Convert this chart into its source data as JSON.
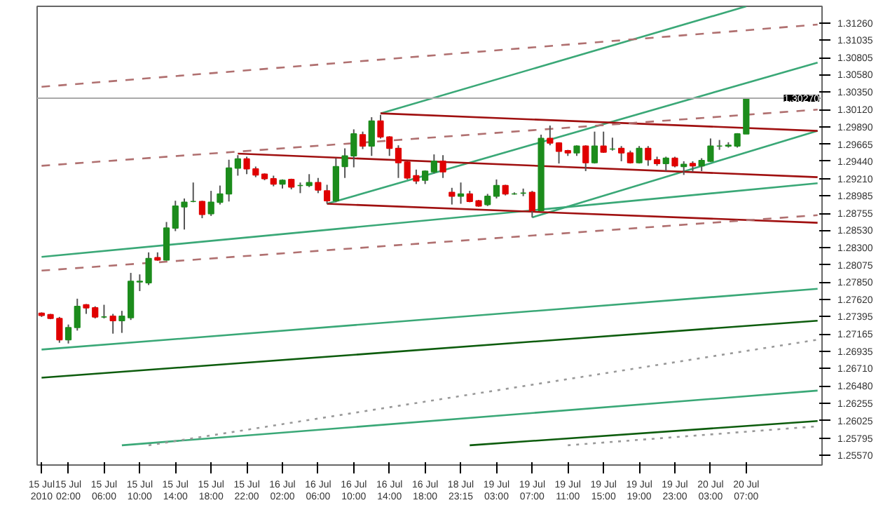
{
  "chart_data": {
    "type": "candlestick",
    "categories": [
      "15 Jul 2010",
      null,
      null,
      "15 Jul 02:00",
      null,
      null,
      null,
      "15 Jul 06:00",
      null,
      null,
      null,
      "15 Jul 10:00",
      null,
      null,
      null,
      "15 Jul 14:00",
      null,
      null,
      null,
      "15 Jul 18:00",
      null,
      null,
      null,
      "15 Jul 22:00",
      null,
      null,
      null,
      "16 Jul 02:00",
      null,
      null,
      null,
      "16 Jul 06:00",
      null,
      null,
      null,
      "16 Jul 10:00",
      null,
      null,
      null,
      "16 Jul 14:00",
      null,
      null,
      null,
      "16 Jul 18:00",
      null,
      null,
      null,
      "18 Jul 23:15",
      null,
      null,
      null,
      "19 Jul 03:00",
      null,
      null,
      null,
      "19 Jul 07:00",
      null,
      null,
      null,
      "19 Jul 11:00",
      null,
      null,
      null,
      "19 Jul 15:00",
      null,
      null,
      null,
      "19 Jul 19:00",
      null,
      null,
      null,
      "19 Jul 23:00",
      null,
      null,
      null,
      "20 Jul 03:00",
      null,
      null,
      null,
      "20 Jul 07:00",
      null,
      null,
      null,
      null,
      null,
      null,
      null,
      null
    ],
    "ohlc": [
      [
        1.2744,
        1.2745,
        1.2739,
        1.2741
      ],
      [
        1.2742,
        1.2743,
        1.2736,
        1.2737
      ],
      [
        1.2737,
        1.2739,
        1.2705,
        1.2709
      ],
      [
        1.2709,
        1.2729,
        1.2704,
        1.2725
      ],
      [
        1.2725,
        1.2763,
        1.2721,
        1.2753
      ],
      [
        1.2755,
        1.2756,
        1.2743,
        1.2751
      ],
      [
        1.2751,
        1.2753,
        1.2737,
        1.2739
      ],
      [
        1.2739,
        1.2755,
        1.2737,
        1.2739
      ],
      [
        1.274,
        1.2743,
        1.2717,
        1.2734
      ],
      [
        1.2734,
        1.2747,
        1.2718,
        1.274
      ],
      [
        1.2738,
        1.2797,
        1.2735,
        1.2786
      ],
      [
        1.2785,
        1.2795,
        1.2773,
        1.2786
      ],
      [
        1.2784,
        1.2824,
        1.2781,
        1.2816
      ],
      [
        1.2817,
        1.2824,
        1.2813,
        1.2814
      ],
      [
        1.2814,
        1.2864,
        1.2813,
        1.2856
      ],
      [
        1.2856,
        1.2892,
        1.2852,
        1.2885
      ],
      [
        1.2884,
        1.2895,
        1.2854,
        1.289
      ],
      [
        1.2891,
        1.2916,
        1.289,
        1.2891
      ],
      [
        1.2891,
        1.2892,
        1.2869,
        1.2874
      ],
      [
        1.2875,
        1.2905,
        1.2872,
        1.289
      ],
      [
        1.289,
        1.2912,
        1.2887,
        1.2901
      ],
      [
        1.2901,
        1.2946,
        1.2891,
        1.2935
      ],
      [
        1.2935,
        1.2952,
        1.2925,
        1.2947
      ],
      [
        1.2947,
        1.295,
        1.2927,
        1.2934
      ],
      [
        1.2934,
        1.2937,
        1.2923,
        1.2926
      ],
      [
        1.2927,
        1.2928,
        1.2919,
        1.2921
      ],
      [
        1.2921,
        1.2925,
        1.2911,
        1.2914
      ],
      [
        1.2914,
        1.292,
        1.2908,
        1.2919
      ],
      [
        1.292,
        1.2921,
        1.2907,
        1.291
      ],
      [
        1.2912,
        1.2916,
        1.2902,
        1.2912
      ],
      [
        1.2912,
        1.2927,
        1.291,
        1.2916
      ],
      [
        1.2916,
        1.2922,
        1.2902,
        1.2906
      ],
      [
        1.2905,
        1.2913,
        1.2888,
        1.2892
      ],
      [
        1.2892,
        1.2948,
        1.289,
        1.2937
      ],
      [
        1.2937,
        1.2961,
        1.2922,
        1.2951
      ],
      [
        1.2951,
        1.2986,
        1.2936,
        1.298
      ],
      [
        1.2979,
        1.2983,
        1.296,
        1.2964
      ],
      [
        1.2964,
        1.3002,
        1.2951,
        1.2997
      ],
      [
        1.2997,
        1.3005,
        1.2974,
        1.2976
      ],
      [
        1.2976,
        1.2977,
        1.2951,
        1.2961
      ],
      [
        1.2961,
        1.2965,
        1.2922,
        1.2942
      ],
      [
        1.2943,
        1.2944,
        1.292,
        1.2922
      ],
      [
        1.2925,
        1.2933,
        1.2914,
        1.2918
      ],
      [
        1.2919,
        1.2932,
        1.2914,
        1.2931
      ],
      [
        1.293,
        1.2953,
        1.2928,
        1.2944
      ],
      [
        1.2944,
        1.2952,
        1.2922,
        1.293
      ],
      [
        1.2903,
        1.2909,
        1.2887,
        1.2898
      ],
      [
        1.2898,
        1.2916,
        1.2888,
        1.2901
      ],
      [
        1.2901,
        1.2905,
        1.289,
        1.2891
      ],
      [
        1.2892,
        1.2893,
        1.2884,
        1.2885
      ],
      [
        1.2887,
        1.2901,
        1.2885,
        1.2898
      ],
      [
        1.2898,
        1.292,
        1.2895,
        1.2912
      ],
      [
        1.2912,
        1.2913,
        1.2899,
        1.2901
      ],
      [
        1.2901,
        1.2903,
        1.29,
        1.2901
      ],
      [
        1.2902,
        1.2908,
        1.2898,
        1.2902
      ],
      [
        1.2903,
        1.2905,
        1.287,
        1.2879
      ],
      [
        1.2879,
        1.2979,
        1.2878,
        1.2974
      ],
      [
        1.2974,
        1.2991,
        1.2965,
        1.2968
      ],
      [
        1.2968,
        1.2969,
        1.2941,
        1.2957
      ],
      [
        1.2958,
        1.2959,
        1.2951,
        1.2955
      ],
      [
        1.2955,
        1.2965,
        1.2951,
        1.2964
      ],
      [
        1.2964,
        1.2965,
        1.2931,
        1.2942
      ],
      [
        1.2942,
        1.2983,
        1.2941,
        1.2964
      ],
      [
        1.2964,
        1.2983,
        1.2955,
        1.2956
      ],
      [
        1.296,
        1.2975,
        1.2958,
        1.296
      ],
      [
        1.2961,
        1.2964,
        1.2944,
        1.2955
      ],
      [
        1.2955,
        1.2958,
        1.2941,
        1.2942
      ],
      [
        1.2942,
        1.2964,
        1.2941,
        1.2961
      ],
      [
        1.2961,
        1.2964,
        1.2938,
        1.2946
      ],
      [
        1.2946,
        1.295,
        1.2938,
        1.2941
      ],
      [
        1.2941,
        1.295,
        1.2931,
        1.2948
      ],
      [
        1.2948,
        1.295,
        1.2936,
        1.2938
      ],
      [
        1.2937,
        1.2944,
        1.2926,
        1.294
      ],
      [
        1.2941,
        1.2944,
        1.293,
        1.2938
      ],
      [
        1.2938,
        1.2948,
        1.2931,
        1.2945
      ],
      [
        1.2944,
        1.2974,
        1.2943,
        1.2964
      ],
      [
        1.2964,
        1.2972,
        1.2959,
        1.2964
      ],
      [
        1.2964,
        1.2969,
        1.2962,
        1.2965
      ],
      [
        1.2964,
        1.2981,
        1.2962,
        1.298
      ],
      [
        1.298,
        1.3027,
        1.298,
        1.3026
      ],
      null,
      null,
      null,
      null,
      null,
      null,
      null,
      null
    ],
    "colors": [
      "#e00000",
      "#e00000",
      "#e00000",
      "#1c8c1c",
      "#1c8c1c",
      "#e00000",
      "#e00000",
      "#1c8c1c",
      "#e00000",
      "#1c8c1c",
      "#1c8c1c",
      "#1c8c1c",
      "#1c8c1c",
      "#e00000",
      "#1c8c1c",
      "#1c8c1c",
      "#1c8c1c",
      "#1c8c1c",
      "#e00000",
      "#1c8c1c",
      "#1c8c1c",
      "#1c8c1c",
      "#1c8c1c",
      "#e00000",
      "#e00000",
      "#e00000",
      "#e00000",
      "#1c8c1c",
      "#e00000",
      "#1c8c1c",
      "#1c8c1c",
      "#e00000",
      "#e00000",
      "#1c8c1c",
      "#1c8c1c",
      "#1c8c1c",
      "#e00000",
      "#1c8c1c",
      "#e00000",
      "#e00000",
      "#e00000",
      "#e00000",
      "#e00000",
      "#1c8c1c",
      "#1c8c1c",
      "#e00000",
      "#e00000",
      "#1c8c1c",
      "#e00000",
      "#e00000",
      "#1c8c1c",
      "#1c8c1c",
      "#e00000",
      "#1c8c1c",
      "#1c8c1c",
      "#e00000",
      "#1c8c1c",
      "#e00000",
      "#e00000",
      "#e00000",
      "#1c8c1c",
      "#e00000",
      "#1c8c1c",
      "#e00000",
      "#1c8c1c",
      "#e00000",
      "#e00000",
      "#1c8c1c",
      "#e00000",
      "#e00000",
      "#1c8c1c",
      "#e00000",
      "#1c8c1c",
      "#e00000",
      "#1c8c1c",
      "#1c8c1c",
      "#1c8c1c",
      "#1c8c1c",
      "#1c8c1c",
      "#1c8c1c",
      null,
      null,
      null,
      null,
      null,
      null,
      null,
      null
    ],
    "series": [
      {
        "type": "line",
        "values": [
          null,
          null,
          null,
          null,
          null,
          null,
          null,
          null,
          null,
          null,
          null,
          null,
          null,
          null,
          null,
          null,
          null,
          null,
          null,
          null,
          null,
          null,
          null,
          null,
          null,
          null,
          null,
          null,
          null,
          null,
          null,
          null,
          null,
          null,
          null,
          null,
          null,
          null,
          1.3007,
          null,
          null,
          null,
          null,
          null,
          null,
          null,
          null,
          null,
          null,
          null,
          null,
          null,
          null,
          null,
          null,
          null,
          null,
          null,
          null,
          null,
          null,
          null,
          null,
          null,
          null,
          null,
          null,
          null,
          null,
          null,
          null,
          null,
          null,
          null,
          null,
          null,
          null,
          null,
          null,
          1.3148,
          null,
          null,
          null,
          null,
          null,
          null,
          null,
          null
        ],
        "color": "#3aa877",
        "line_style": "solid"
      },
      {
        "type": "line",
        "values": [
          null,
          null,
          null,
          null,
          null,
          null,
          null,
          null,
          null,
          null,
          null,
          null,
          null,
          null,
          null,
          null,
          null,
          null,
          null,
          null,
          null,
          null,
          null,
          null,
          null,
          null,
          null,
          null,
          null,
          null,
          null,
          null,
          1.2888,
          null,
          null,
          null,
          null,
          null,
          null,
          null,
          null,
          null,
          null,
          null,
          null,
          null,
          null,
          null,
          null,
          null,
          null,
          null,
          null,
          null,
          null,
          null,
          null,
          null,
          null,
          null,
          null,
          null,
          null,
          null,
          null,
          null,
          null,
          null,
          null,
          null,
          null,
          null,
          null,
          null,
          null,
          null,
          null,
          null,
          null,
          null,
          null,
          null,
          null,
          null,
          null,
          null,
          null,
          1.3074
        ],
        "color": "#3aa877",
        "line_style": "solid"
      },
      {
        "type": "line",
        "values": [
          null,
          null,
          null,
          null,
          null,
          null,
          null,
          null,
          null,
          null,
          null,
          null,
          null,
          null,
          null,
          null,
          null,
          null,
          null,
          null,
          null,
          null,
          null,
          null,
          null,
          null,
          null,
          null,
          null,
          null,
          null,
          null,
          null,
          null,
          null,
          null,
          null,
          null,
          null,
          null,
          null,
          null,
          null,
          null,
          null,
          null,
          null,
          null,
          null,
          null,
          null,
          null,
          null,
          null,
          null,
          1.287,
          null,
          null,
          null,
          null,
          null,
          null,
          null,
          null,
          null,
          null,
          null,
          null,
          null,
          null,
          null,
          null,
          null,
          null,
          null,
          null,
          null,
          null,
          null,
          null,
          null,
          null,
          null,
          null,
          null,
          null,
          null,
          1.2984
        ],
        "color": "#3aa877",
        "line_style": "solid"
      },
      {
        "type": "line",
        "values": [
          1.2818,
          null,
          null,
          null,
          null,
          null,
          null,
          null,
          null,
          null,
          null,
          null,
          null,
          null,
          null,
          null,
          null,
          null,
          null,
          null,
          null,
          null,
          null,
          null,
          null,
          null,
          null,
          null,
          null,
          null,
          null,
          null,
          null,
          null,
          null,
          null,
          null,
          null,
          null,
          null,
          null,
          null,
          null,
          null,
          null,
          null,
          null,
          null,
          null,
          null,
          null,
          null,
          null,
          null,
          null,
          null,
          null,
          null,
          null,
          null,
          null,
          null,
          null,
          null,
          null,
          null,
          null,
          null,
          null,
          null,
          null,
          null,
          null,
          null,
          null,
          null,
          null,
          null,
          null,
          null,
          null,
          null,
          null,
          null,
          null,
          null,
          null,
          1.2915
        ],
        "color": "#3aa877",
        "line_style": "solid"
      },
      {
        "type": "line",
        "values": [
          1.2696,
          null,
          null,
          null,
          null,
          null,
          null,
          null,
          null,
          null,
          null,
          null,
          null,
          null,
          null,
          null,
          null,
          null,
          null,
          null,
          null,
          null,
          null,
          null,
          null,
          null,
          null,
          null,
          null,
          null,
          null,
          null,
          null,
          null,
          null,
          null,
          null,
          null,
          null,
          null,
          null,
          null,
          null,
          null,
          null,
          null,
          null,
          null,
          null,
          null,
          null,
          null,
          null,
          null,
          null,
          null,
          null,
          null,
          null,
          null,
          null,
          null,
          null,
          null,
          null,
          null,
          null,
          null,
          null,
          null,
          null,
          null,
          null,
          null,
          null,
          null,
          null,
          null,
          null,
          null,
          null,
          null,
          null,
          null,
          null,
          null,
          null,
          1.2776
        ],
        "color": "#3aa877",
        "line_style": "solid"
      },
      {
        "type": "line",
        "values": [
          1.2659,
          null,
          null,
          null,
          null,
          null,
          null,
          null,
          null,
          null,
          null,
          null,
          null,
          null,
          null,
          null,
          null,
          null,
          null,
          null,
          null,
          null,
          null,
          null,
          null,
          null,
          null,
          null,
          null,
          null,
          null,
          null,
          null,
          null,
          null,
          null,
          null,
          null,
          null,
          null,
          null,
          null,
          null,
          null,
          null,
          null,
          null,
          null,
          null,
          null,
          null,
          null,
          null,
          null,
          null,
          null,
          null,
          null,
          null,
          null,
          null,
          null,
          null,
          null,
          null,
          null,
          null,
          null,
          null,
          null,
          null,
          null,
          null,
          null,
          null,
          null,
          null,
          null,
          null,
          null,
          null,
          null,
          null,
          null,
          null,
          null,
          null,
          1.2734
        ],
        "color": "#0d5c0d",
        "line_style": "solid"
      },
      {
        "type": "line",
        "values": [
          null,
          null,
          null,
          null,
          null,
          null,
          null,
          null,
          null,
          1.257,
          null,
          null,
          null,
          null,
          null,
          null,
          null,
          null,
          null,
          null,
          null,
          null,
          null,
          null,
          null,
          null,
          null,
          null,
          null,
          null,
          null,
          null,
          null,
          null,
          null,
          null,
          null,
          null,
          null,
          null,
          null,
          null,
          null,
          null,
          null,
          null,
          null,
          null,
          null,
          null,
          null,
          null,
          null,
          null,
          null,
          null,
          null,
          null,
          null,
          null,
          null,
          null,
          null,
          null,
          null,
          null,
          null,
          null,
          null,
          null,
          null,
          null,
          null,
          null,
          null,
          null,
          null,
          null,
          null,
          null,
          null,
          null,
          null,
          null,
          null,
          null,
          null,
          1.2642
        ],
        "color": "#3aa877",
        "line_style": "solid"
      },
      {
        "type": "line",
        "values": [
          null,
          null,
          null,
          null,
          null,
          null,
          null,
          null,
          null,
          null,
          null,
          null,
          null,
          null,
          null,
          null,
          null,
          null,
          null,
          null,
          null,
          null,
          null,
          null,
          null,
          null,
          null,
          null,
          null,
          null,
          null,
          null,
          null,
          null,
          null,
          null,
          null,
          null,
          null,
          null,
          null,
          null,
          null,
          null,
          null,
          null,
          null,
          null,
          1.257,
          null,
          null,
          null,
          null,
          null,
          null,
          null,
          null,
          null,
          null,
          null,
          null,
          null,
          null,
          null,
          null,
          null,
          null,
          null,
          null,
          null,
          null,
          null,
          null,
          null,
          null,
          null,
          null,
          null,
          null,
          null,
          null,
          null,
          null,
          null,
          null,
          null,
          null,
          1.2602
        ],
        "color": "#0d5c0d",
        "line_style": "solid"
      },
      {
        "type": "line",
        "values": [
          null,
          null,
          null,
          null,
          null,
          null,
          null,
          null,
          null,
          null,
          null,
          null,
          null,
          null,
          null,
          null,
          null,
          null,
          null,
          null,
          null,
          null,
          null,
          null,
          null,
          null,
          null,
          null,
          null,
          null,
          null,
          null,
          null,
          null,
          null,
          null,
          null,
          null,
          1.3007,
          null,
          null,
          null,
          null,
          null,
          null,
          null,
          null,
          null,
          null,
          null,
          null,
          null,
          null,
          null,
          null,
          null,
          null,
          null,
          null,
          null,
          null,
          null,
          null,
          null,
          null,
          null,
          null,
          null,
          null,
          null,
          null,
          null,
          null,
          null,
          null,
          null,
          null,
          null,
          null,
          null,
          null,
          null,
          null,
          null,
          null,
          null,
          null,
          1.2984
        ],
        "color": "#a01010",
        "line_style": "solid"
      },
      {
        "type": "line",
        "values": [
          null,
          null,
          null,
          null,
          null,
          null,
          null,
          null,
          null,
          null,
          null,
          null,
          null,
          null,
          null,
          null,
          null,
          null,
          null,
          null,
          null,
          null,
          1.2954,
          null,
          null,
          null,
          null,
          null,
          null,
          null,
          null,
          null,
          null,
          null,
          null,
          null,
          null,
          null,
          null,
          null,
          null,
          null,
          null,
          null,
          null,
          null,
          null,
          null,
          null,
          null,
          null,
          null,
          null,
          null,
          null,
          null,
          null,
          null,
          null,
          null,
          null,
          null,
          null,
          null,
          null,
          null,
          null,
          null,
          null,
          null,
          null,
          null,
          null,
          null,
          null,
          null,
          null,
          null,
          null,
          null,
          null,
          null,
          null,
          null,
          null,
          null,
          null,
          1.2923
        ],
        "color": "#a01010",
        "line_style": "solid"
      },
      {
        "type": "line",
        "values": [
          null,
          null,
          null,
          null,
          null,
          null,
          null,
          null,
          null,
          null,
          null,
          null,
          null,
          null,
          null,
          null,
          null,
          null,
          null,
          null,
          null,
          null,
          null,
          null,
          null,
          null,
          null,
          null,
          null,
          null,
          null,
          null,
          1.2888,
          null,
          null,
          null,
          null,
          null,
          null,
          null,
          null,
          null,
          null,
          null,
          null,
          null,
          null,
          null,
          null,
          null,
          null,
          null,
          null,
          null,
          null,
          null,
          null,
          null,
          null,
          null,
          null,
          null,
          null,
          null,
          null,
          null,
          null,
          null,
          null,
          null,
          null,
          null,
          null,
          null,
          null,
          null,
          null,
          null,
          null,
          null,
          null,
          null,
          null,
          null,
          null,
          null,
          null,
          1.2863
        ],
        "color": "#a01010",
        "line_style": "solid"
      },
      {
        "type": "line",
        "values": [
          1.3042,
          null,
          null,
          null,
          null,
          null,
          null,
          null,
          null,
          null,
          null,
          null,
          null,
          null,
          null,
          null,
          null,
          null,
          null,
          null,
          null,
          null,
          null,
          null,
          null,
          null,
          null,
          null,
          null,
          null,
          null,
          null,
          null,
          null,
          null,
          null,
          null,
          null,
          null,
          null,
          null,
          null,
          null,
          null,
          null,
          null,
          null,
          null,
          null,
          null,
          null,
          null,
          null,
          null,
          null,
          null,
          null,
          null,
          null,
          null,
          null,
          null,
          null,
          null,
          null,
          null,
          null,
          null,
          null,
          null,
          null,
          null,
          null,
          null,
          null,
          null,
          null,
          null,
          null,
          null,
          null,
          null,
          null,
          null,
          null,
          null,
          null,
          1.3124
        ],
        "color": "#b07070",
        "line_style": "dashed"
      },
      {
        "type": "line",
        "values": [
          1.2938,
          null,
          null,
          null,
          null,
          null,
          null,
          null,
          null,
          null,
          null,
          null,
          null,
          null,
          null,
          null,
          null,
          null,
          null,
          null,
          null,
          null,
          null,
          null,
          null,
          null,
          null,
          null,
          null,
          null,
          null,
          null,
          null,
          null,
          null,
          null,
          null,
          null,
          null,
          null,
          null,
          null,
          null,
          null,
          null,
          null,
          null,
          null,
          null,
          null,
          null,
          null,
          null,
          null,
          null,
          null,
          null,
          null,
          null,
          null,
          null,
          null,
          null,
          null,
          null,
          null,
          null,
          null,
          null,
          null,
          null,
          null,
          null,
          null,
          null,
          null,
          null,
          null,
          null,
          null,
          null,
          null,
          null,
          null,
          null,
          null,
          null,
          1.3012
        ],
        "color": "#b07070",
        "line_style": "dashed"
      },
      {
        "type": "line",
        "values": [
          1.28,
          null,
          null,
          null,
          null,
          null,
          null,
          null,
          null,
          null,
          null,
          null,
          null,
          null,
          null,
          null,
          null,
          null,
          null,
          null,
          null,
          null,
          null,
          null,
          null,
          null,
          null,
          null,
          null,
          null,
          null,
          null,
          null,
          null,
          null,
          null,
          null,
          null,
          null,
          null,
          null,
          null,
          null,
          null,
          null,
          null,
          null,
          null,
          null,
          null,
          null,
          null,
          null,
          null,
          null,
          null,
          null,
          null,
          null,
          null,
          null,
          null,
          null,
          null,
          null,
          null,
          null,
          null,
          null,
          null,
          null,
          null,
          null,
          null,
          null,
          null,
          null,
          null,
          null,
          null,
          null,
          null,
          null,
          null,
          null,
          null,
          null,
          1.2873
        ],
        "color": "#b07070",
        "line_style": "dashed"
      },
      {
        "type": "line",
        "values": [
          null,
          null,
          null,
          null,
          null,
          null,
          null,
          null,
          null,
          null,
          null,
          null,
          1.257,
          null,
          null,
          null,
          null,
          null,
          null,
          null,
          null,
          null,
          null,
          null,
          null,
          null,
          null,
          null,
          null,
          null,
          null,
          null,
          null,
          null,
          null,
          null,
          null,
          null,
          null,
          null,
          null,
          null,
          null,
          null,
          null,
          null,
          null,
          null,
          null,
          null,
          null,
          null,
          null,
          null,
          null,
          null,
          null,
          null,
          null,
          null,
          null,
          null,
          null,
          null,
          null,
          null,
          null,
          null,
          null,
          null,
          null,
          null,
          null,
          null,
          null,
          null,
          null,
          null,
          null,
          null,
          null,
          null,
          null,
          null,
          null,
          null,
          null,
          1.2709
        ],
        "color": "#999999",
        "line_style": "dotted"
      },
      {
        "type": "line",
        "values": [
          null,
          null,
          null,
          null,
          null,
          null,
          null,
          null,
          null,
          null,
          null,
          null,
          null,
          null,
          null,
          null,
          null,
          null,
          null,
          null,
          null,
          null,
          null,
          null,
          null,
          null,
          null,
          null,
          null,
          null,
          null,
          null,
          null,
          null,
          null,
          null,
          null,
          null,
          null,
          null,
          null,
          null,
          null,
          null,
          null,
          null,
          null,
          null,
          null,
          null,
          null,
          null,
          null,
          null,
          null,
          null,
          null,
          null,
          null,
          1.257,
          null,
          null,
          null,
          null,
          null,
          null,
          null,
          null,
          null,
          null,
          null,
          null,
          null,
          null,
          null,
          null,
          null,
          null,
          null,
          null,
          null,
          null,
          null,
          null,
          null,
          null,
          null,
          1.2595
        ],
        "color": "#999999",
        "line_style": "dotted"
      }
    ],
    "ref_lines": [
      {
        "axis": "y",
        "value": 1.3027,
        "label": "1.30270",
        "color": "#aaaaaa"
      }
    ],
    "ylim": [
      1.2544,
      1.3148
    ],
    "yticks": [
      {
        "value": 1.2557,
        "label": "1.25570"
      },
      {
        "value": 1.25795,
        "label": "1.25795"
      },
      {
        "value": 1.26025,
        "label": "1.26025"
      },
      {
        "value": 1.26255,
        "label": "1.26255"
      },
      {
        "value": 1.2648,
        "label": "1.26480"
      },
      {
        "value": 1.2671,
        "label": "1.26710"
      },
      {
        "value": 1.26935,
        "label": "1.26935"
      },
      {
        "value": 1.27165,
        "label": "1.27165"
      },
      {
        "value": 1.27395,
        "label": "1.27395"
      },
      {
        "value": 1.2762,
        "label": "1.27620"
      },
      {
        "value": 1.2785,
        "label": "1.27850"
      },
      {
        "value": 1.28075,
        "label": "1.28075"
      },
      {
        "value": 1.283,
        "label": "1.28300"
      },
      {
        "value": 1.2853,
        "label": "1.28530"
      },
      {
        "value": 1.28755,
        "label": "1.28755"
      },
      {
        "value": 1.28985,
        "label": "1.28985"
      },
      {
        "value": 1.2921,
        "label": "1.29210"
      },
      {
        "value": 1.2944,
        "label": "1.29440"
      },
      {
        "value": 1.29665,
        "label": "1.29665"
      },
      {
        "value": 1.2989,
        "label": "1.29890"
      },
      {
        "value": 1.3012,
        "label": "1.30120"
      },
      {
        "value": 1.3035,
        "label": "1.30350"
      },
      {
        "value": 1.3058,
        "label": "1.30580"
      },
      {
        "value": 1.30805,
        "label": "1.30805"
      },
      {
        "value": 1.31035,
        "label": "1.31035"
      },
      {
        "value": 1.3126,
        "label": "1.31260"
      }
    ],
    "grid": false
  }
}
